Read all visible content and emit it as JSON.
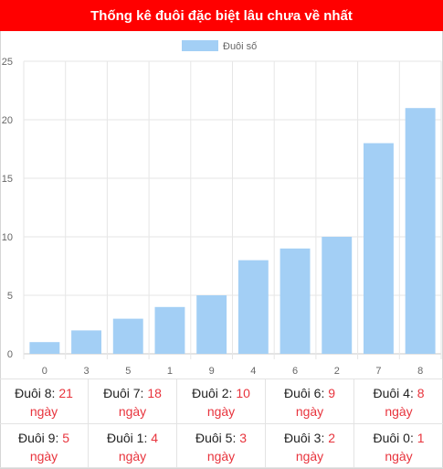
{
  "header": {
    "title": "Thống kê đuôi đặc biệt lâu chưa về nhất"
  },
  "colors": {
    "header_bg": "#ff0000",
    "bar": "#a3cff5",
    "accent": "#e8343d"
  },
  "chart_data": {
    "type": "bar",
    "title": "",
    "xlabel": "",
    "ylabel": "",
    "categories": [
      "0",
      "3",
      "5",
      "1",
      "9",
      "4",
      "6",
      "2",
      "7",
      "8"
    ],
    "series": [
      {
        "name": "Đuôi số",
        "values": [
          1,
          2,
          3,
          4,
          5,
          8,
          9,
          10,
          18,
          21
        ]
      }
    ],
    "ylim": [
      0,
      25
    ],
    "yticks": [
      "0",
      "5",
      "10",
      "15",
      "20",
      "25"
    ],
    "grid": true,
    "legend": "top-center"
  },
  "stats": [
    {
      "label": "Đuôi 8:",
      "value": "21",
      "unit": "ngày"
    },
    {
      "label": "Đuôi 7:",
      "value": "18",
      "unit": "ngày"
    },
    {
      "label": "Đuôi 2:",
      "value": "10",
      "unit": "ngày"
    },
    {
      "label": "Đuôi 6:",
      "value": "9",
      "unit": "ngày"
    },
    {
      "label": "Đuôi 4:",
      "value": "8",
      "unit": "ngày"
    },
    {
      "label": "Đuôi 9:",
      "value": "5",
      "unit": "ngày"
    },
    {
      "label": "Đuôi 1:",
      "value": "4",
      "unit": "ngày"
    },
    {
      "label": "Đuôi 5:",
      "value": "3",
      "unit": "ngày"
    },
    {
      "label": "Đuôi 3:",
      "value": "2",
      "unit": "ngày"
    },
    {
      "label": "Đuôi 0:",
      "value": "1",
      "unit": "ngày"
    }
  ]
}
